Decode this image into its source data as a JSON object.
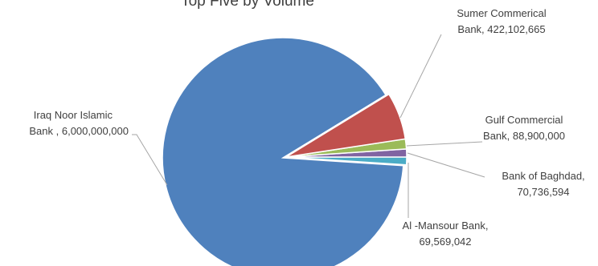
{
  "chart_data": {
    "type": "pie",
    "title": "Top Five by Volume",
    "series": [
      {
        "name": "",
        "slices": [
          {
            "label": "Iraq Noor Islamic Bank",
            "value": 6000000000,
            "color": "#4F81BD",
            "label_lines": [
              "Iraq Noor Islamic",
              "Bank , 6,000,000,000"
            ]
          },
          {
            "label": "Al -Mansour Bank",
            "value": 69569042,
            "color": "#4BACC6",
            "label_lines": [
              "Al -Mansour Bank,",
              "69,569,042"
            ]
          },
          {
            "label": "Bank of Baghdad",
            "value": 70736594,
            "color": "#8064A2",
            "label_lines": [
              "Bank of Baghdad,",
              "70,736,594"
            ]
          },
          {
            "label": "Gulf Commercial",
            "value": 88900000,
            "color": "#9BBB59",
            "label_lines": [
              "Gulf Commercial",
              "Bank, 88,900,000"
            ]
          },
          {
            "label": "Sumer Commerical Bank",
            "value": 422102665,
            "color": "#C0504D",
            "label_lines": [
              "Sumer Commerical",
              "Bank, 422,102,665"
            ]
          }
        ]
      }
    ],
    "legend": "none",
    "grid": false,
    "leader_line_color": "#A6A6A6"
  }
}
